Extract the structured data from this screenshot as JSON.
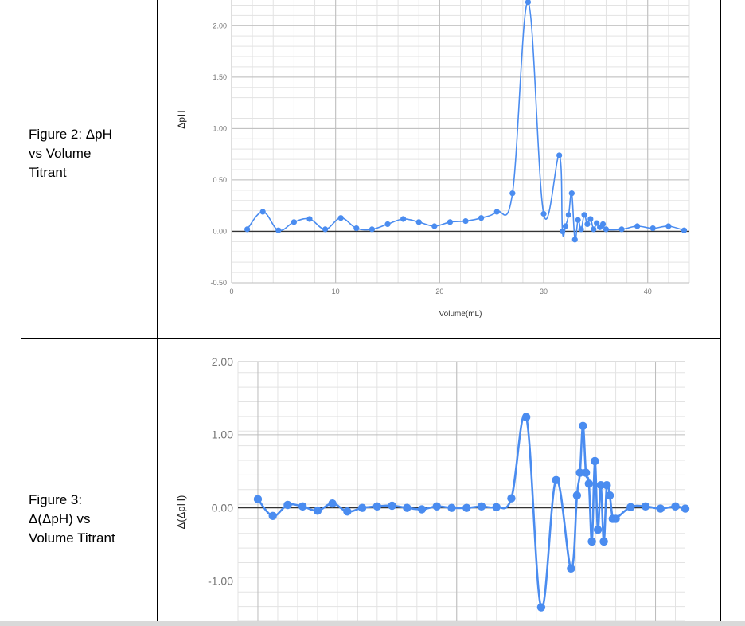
{
  "rows": [
    {
      "caption": "Figure 2: ΔpH\nvs Volume\nTitrant"
    },
    {
      "caption": "Figure 3:\nΔ(ΔpH) vs\nVolume Titrant"
    }
  ],
  "chart_data": [
    {
      "type": "line",
      "xlabel": "Volume(mL)",
      "ylabel": "ΔpH",
      "xlim": [
        0,
        44
      ],
      "ylim": [
        -0.5,
        2.25
      ],
      "x_ticks": [
        "0",
        "10",
        "20",
        "30",
        "40"
      ],
      "y_ticks": [
        "-0.50",
        "0.00",
        "0.50",
        "1.00",
        "1.50",
        "2.00"
      ],
      "grid": true,
      "series": [
        {
          "color": "#4a8cf0",
          "x": [
            1.5,
            3.0,
            4.5,
            6.0,
            7.5,
            9.0,
            10.5,
            12.0,
            13.5,
            15.0,
            16.5,
            18.0,
            19.5,
            21.0,
            22.5,
            24.0,
            25.5,
            27.0,
            28.5,
            30.0,
            31.5,
            31.8,
            32.1,
            32.4,
            32.7,
            33.0,
            33.3,
            33.6,
            33.9,
            34.2,
            34.5,
            34.8,
            35.1,
            35.4,
            35.7,
            36.0,
            37.5,
            39.0,
            40.5,
            42.0,
            43.5
          ],
          "y": [
            0.02,
            0.19,
            0.01,
            0.09,
            0.12,
            0.02,
            0.13,
            0.03,
            0.02,
            0.07,
            0.12,
            0.09,
            0.05,
            0.09,
            0.1,
            0.13,
            0.19,
            0.37,
            2.23,
            0.17,
            0.74,
            0.0,
            0.05,
            0.16,
            0.37,
            -0.08,
            0.11,
            0.02,
            0.16,
            0.07,
            0.12,
            0.02,
            0.08,
            0.04,
            0.07,
            0.02,
            0.02,
            0.05,
            0.03,
            0.05,
            0.01
          ]
        }
      ]
    },
    {
      "type": "line",
      "xlabel": "",
      "ylabel": "Δ(ΔpH)",
      "xlim": [
        -2,
        43
      ],
      "ylim": [
        -1.55,
        2.0
      ],
      "x_ticks": [],
      "y_ticks": [
        "-1.00",
        "0.00",
        "1.00",
        "2.00"
      ],
      "grid": true,
      "series": [
        {
          "color": "#4a8cf0",
          "x": [
            0.0,
            1.5,
            3.0,
            4.5,
            6.0,
            7.5,
            9.0,
            10.5,
            12.0,
            13.5,
            15.0,
            16.5,
            18.0,
            19.5,
            21.0,
            22.5,
            24.0,
            25.5,
            27.0,
            28.5,
            30.0,
            31.5,
            32.1,
            32.4,
            32.7,
            33.0,
            33.3,
            33.6,
            33.9,
            34.2,
            34.5,
            34.8,
            35.1,
            35.4,
            35.7,
            36.0,
            37.5,
            39.0,
            40.5,
            42.0,
            43.0
          ],
          "y": [
            0.12,
            -0.11,
            0.04,
            0.02,
            -0.04,
            0.06,
            -0.05,
            0.0,
            0.02,
            0.03,
            0.0,
            -0.02,
            0.02,
            0.0,
            0.0,
            0.02,
            0.01,
            0.13,
            1.24,
            -1.36,
            0.38,
            -0.83,
            0.17,
            0.48,
            1.12,
            0.48,
            0.33,
            -0.46,
            0.64,
            -0.3,
            0.31,
            -0.46,
            0.31,
            0.17,
            -0.15,
            -0.15,
            0.01,
            0.02,
            -0.01,
            0.02,
            -0.01
          ]
        }
      ]
    }
  ]
}
